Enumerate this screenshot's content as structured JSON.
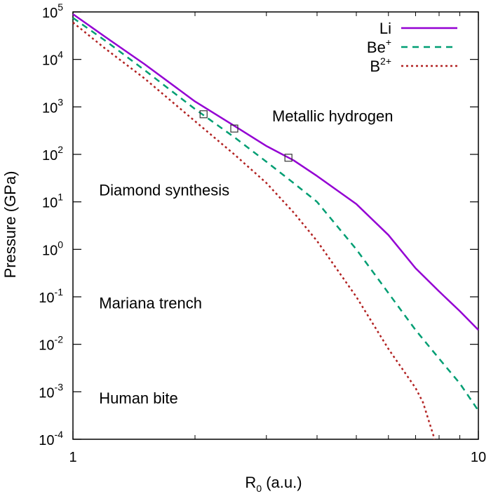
{
  "chart_data": {
    "type": "line",
    "title": "",
    "xlabel": {
      "main": "R",
      "sub": "0",
      "rest": " (a.u.)"
    },
    "ylabel": "Pressure (GPa)",
    "x_scale": "log",
    "y_scale": "log",
    "xlim": [
      1,
      10
    ],
    "ylim": [
      0.0001,
      100000
    ],
    "x_ticks": [
      {
        "value": 1,
        "label": "1"
      },
      {
        "value": 10,
        "label": "10"
      }
    ],
    "y_ticks": [
      {
        "value": 100000,
        "base": "10",
        "exp": "5"
      },
      {
        "value": 10000,
        "base": "10",
        "exp": "4"
      },
      {
        "value": 1000,
        "base": "10",
        "exp": "3"
      },
      {
        "value": 100,
        "base": "10",
        "exp": "2"
      },
      {
        "value": 10,
        "base": "10",
        "exp": "1"
      },
      {
        "value": 1,
        "base": "10",
        "exp": "0"
      },
      {
        "value": 0.1,
        "base": "10",
        "exp": "-1"
      },
      {
        "value": 0.01,
        "base": "10",
        "exp": "-2"
      },
      {
        "value": 0.001,
        "base": "10",
        "exp": "-3"
      },
      {
        "value": 0.0001,
        "base": "10",
        "exp": "-4"
      }
    ],
    "legend_position": "top-right",
    "series": [
      {
        "name": "Li",
        "name_sup": "",
        "color": "#9400d3",
        "style": "solid",
        "x": [
          1.0,
          1.2,
          1.5,
          2.0,
          2.5,
          3.0,
          3.5,
          4.0,
          5.0,
          6.0,
          7.0,
          8.0,
          9.0,
          10.0
        ],
        "y": [
          90000,
          30000,
          8000,
          1300,
          400,
          150,
          75,
          35,
          9,
          2,
          0.4,
          0.13,
          0.05,
          0.02
        ]
      },
      {
        "name": "Be",
        "name_sup": "+",
        "color": "#009e73",
        "style": "dashed",
        "x": [
          1.0,
          1.2,
          1.5,
          2.0,
          2.5,
          3.0,
          3.5,
          4.0,
          5.0,
          6.0,
          7.0,
          8.0,
          9.0,
          10.0
        ],
        "y": [
          75000,
          25000,
          6000,
          900,
          230,
          70,
          25,
          10,
          1,
          0.12,
          0.02,
          0.005,
          0.0015,
          0.0004
        ]
      },
      {
        "name": "B",
        "name_sup": "2+",
        "color": "#b22222",
        "style": "dotted",
        "x": [
          1.0,
          1.2,
          1.5,
          2.0,
          2.5,
          3.0,
          3.5,
          4.0,
          5.0,
          6.0,
          7.0,
          7.3,
          7.8
        ],
        "y": [
          60000,
          17000,
          4000,
          500,
          100,
          25,
          6,
          1.5,
          0.1,
          0.008,
          0.0012,
          0.0006,
          0.0001
        ]
      }
    ],
    "markers": [
      {
        "x": 2.1,
        "y": 700
      },
      {
        "x": 2.5,
        "y": 350
      },
      {
        "x": 3.4,
        "y": 85
      }
    ],
    "annotations": [
      {
        "text": "Metallic hydrogen",
        "x": 3.1,
        "y": 650
      },
      {
        "text": "Diamond synthesis",
        "x": 1.16,
        "y": 18
      },
      {
        "text": "Mariana trench",
        "x": 1.16,
        "y": 0.075
      },
      {
        "text": "Human bite",
        "x": 1.16,
        "y": 0.00075
      }
    ]
  }
}
